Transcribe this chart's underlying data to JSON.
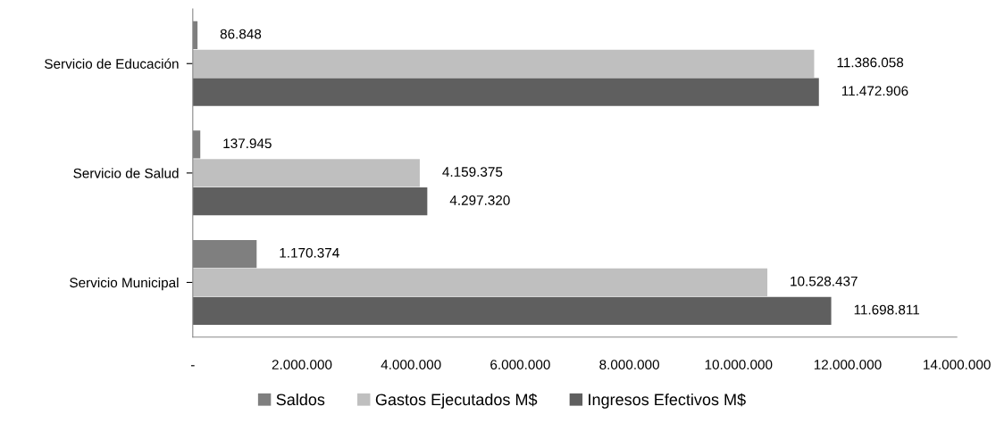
{
  "chart_data": {
    "type": "bar",
    "orientation": "horizontal",
    "categories": [
      "Servicio de Educación",
      "Servicio de Salud",
      "Servicio Municipal"
    ],
    "series": [
      {
        "name": "Saldos",
        "color": "#7f7f7f",
        "values": [
          86848,
          137945,
          1170374
        ],
        "value_labels": [
          "86.848",
          "137.945",
          "1.170.374"
        ]
      },
      {
        "name": "Gastos Ejecutados M$",
        "color": "#bfbfbf",
        "values": [
          11386058,
          4159375,
          10528437
        ],
        "value_labels": [
          "11.386.058",
          "4.159.375",
          "10.528.437"
        ]
      },
      {
        "name": "Ingresos Efectivos M$",
        "color": "#5f5f5f",
        "values": [
          11472906,
          4297320,
          11698811
        ],
        "value_labels": [
          "11.472.906",
          "4.297.320",
          "11.698.811"
        ]
      }
    ],
    "xlim": [
      0,
      14000000
    ],
    "xticks": [
      {
        "value": 0,
        "label": "-"
      },
      {
        "value": 2000000,
        "label": "2.000.000"
      },
      {
        "value": 4000000,
        "label": "4.000.000"
      },
      {
        "value": 6000000,
        "label": "6.000.000"
      },
      {
        "value": 8000000,
        "label": "8.000.000"
      },
      {
        "value": 10000000,
        "label": "10.000.000"
      },
      {
        "value": 12000000,
        "label": "12.000.000"
      },
      {
        "value": 14000000,
        "label": "14.000.000"
      }
    ],
    "grid": false,
    "legend": "bottom"
  }
}
